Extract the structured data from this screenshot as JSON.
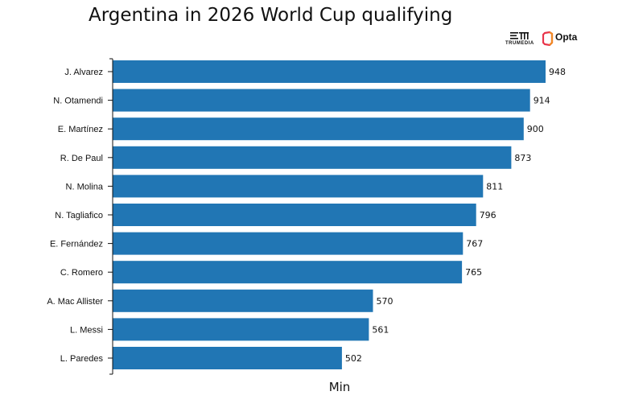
{
  "chart_data": {
    "type": "bar",
    "orientation": "horizontal",
    "title": "Argentina in 2026 World Cup qualifying",
    "xlabel": "Min",
    "ylabel": "",
    "categories": [
      "J. Alvarez",
      "N. Otamendi",
      "E. Martínez",
      "R. De Paul",
      "N. Molina",
      "N. Tagliafico",
      "E. Fernández",
      "C. Romero",
      "A. Mac Allister",
      "L. Messi",
      "L. Paredes"
    ],
    "values": [
      948,
      914,
      900,
      873,
      811,
      796,
      767,
      765,
      570,
      561,
      502
    ],
    "xlim": [
      0,
      948
    ],
    "bar_color": "#2176b4",
    "grid": false
  },
  "logos": {
    "trumedia": "TRUMEDIA",
    "opta": "Opta"
  }
}
